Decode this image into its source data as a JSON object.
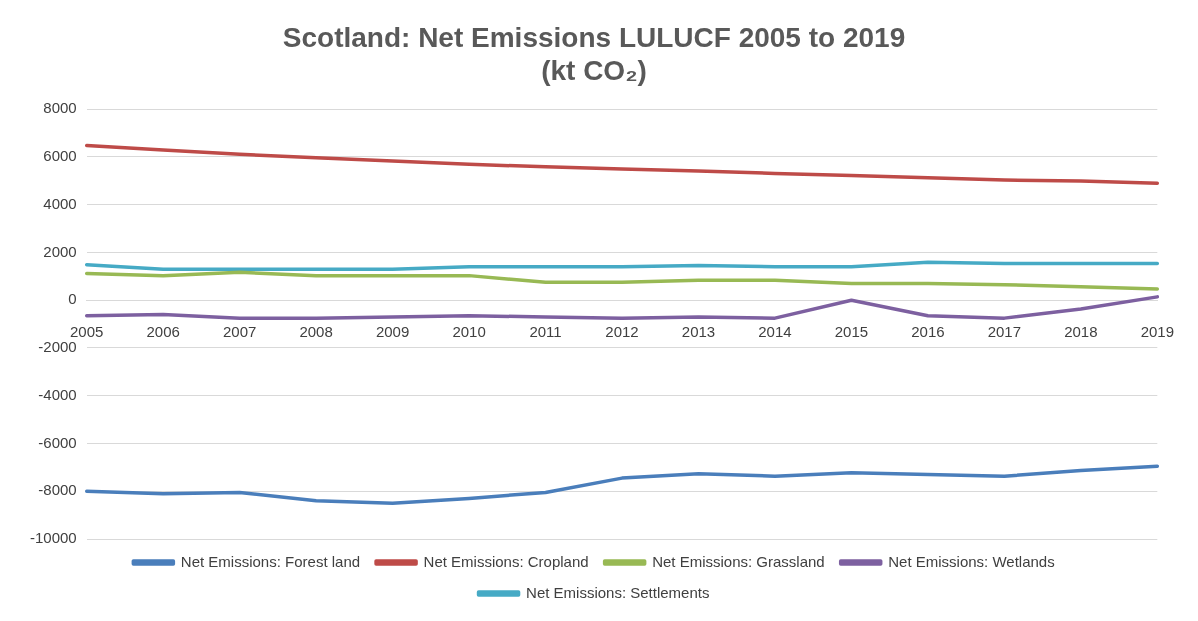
{
  "chart_data": {
    "type": "line",
    "title": "Scotland: Net Emissions LULUCF 2005 to 2019\n(kt CO₂)",
    "categories": [
      "2005",
      "2006",
      "2007",
      "2008",
      "2009",
      "2010",
      "2011",
      "2012",
      "2013",
      "2014",
      "2015",
      "2016",
      "2017",
      "2018",
      "2019"
    ],
    "series": [
      {
        "name": "Net Emissions: Forest land",
        "color": "#4a7ebb",
        "values": [
          -8000,
          -8100,
          -8050,
          -8400,
          -8500,
          -8300,
          -8050,
          -7450,
          -7270,
          -7370,
          -7230,
          -7300,
          -7370,
          -7130,
          -6950
        ]
      },
      {
        "name": "Net Emissions: Cropland",
        "color": "#be4b48",
        "values": [
          6480,
          6290,
          6110,
          5970,
          5830,
          5690,
          5590,
          5500,
          5410,
          5310,
          5220,
          5130,
          5030,
          4990,
          4900
        ]
      },
      {
        "name": "Net Emissions: Grassland",
        "color": "#98b954",
        "values": [
          1120,
          1030,
          1170,
          1030,
          1030,
          1030,
          750,
          750,
          840,
          840,
          700,
          700,
          650,
          560,
          470
        ]
      },
      {
        "name": "Net Emissions: Wetlands",
        "color": "#7d60a0",
        "values": [
          -650,
          -600,
          -750,
          -750,
          -700,
          -650,
          -700,
          -750,
          -700,
          -750,
          0,
          -650,
          -750,
          -370,
          140
        ]
      },
      {
        "name": "Net Emissions: Settlements",
        "color": "#46aac5",
        "values": [
          1490,
          1300,
          1300,
          1300,
          1300,
          1400,
          1400,
          1400,
          1450,
          1400,
          1400,
          1590,
          1540,
          1540,
          1540
        ]
      }
    ],
    "ylim": [
      -10000,
      8000
    ],
    "yticks": [
      -10000,
      -8000,
      -6000,
      -4000,
      -2000,
      0,
      2000,
      4000,
      6000,
      8000
    ],
    "grid": "y",
    "legend": "bottom",
    "marker": "none",
    "line_style": "solid"
  }
}
